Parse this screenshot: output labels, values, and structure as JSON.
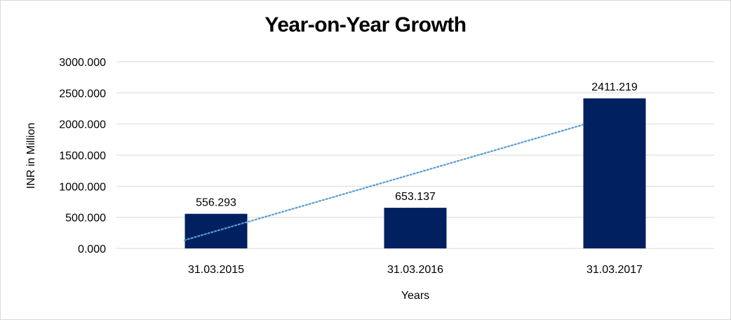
{
  "chart_data": {
    "type": "bar",
    "title": "Year-on-Year Growth",
    "xlabel": "Years",
    "ylabel": "INR in Million",
    "categories": [
      "31.03.2015",
      "31.03.2016",
      "31.03.2017"
    ],
    "values": [
      556.293,
      653.137,
      2411.219
    ],
    "value_labels": [
      "556.293",
      "653.137",
      "2411.219"
    ],
    "ylim": [
      0,
      3000
    ],
    "yticks": [
      0,
      500,
      1000,
      1500,
      2000,
      2500,
      3000
    ],
    "ytick_labels": [
      "0.000",
      "500.000",
      "1000.000",
      "1500.000",
      "2000.000",
      "2500.000",
      "3000.000"
    ],
    "trendline": {
      "type": "linear",
      "style": "dotted",
      "color": "#5b9bd5"
    },
    "grid": true,
    "legend": "none",
    "bar_color": "#002060",
    "gridline_color": "#d9d9d9"
  }
}
